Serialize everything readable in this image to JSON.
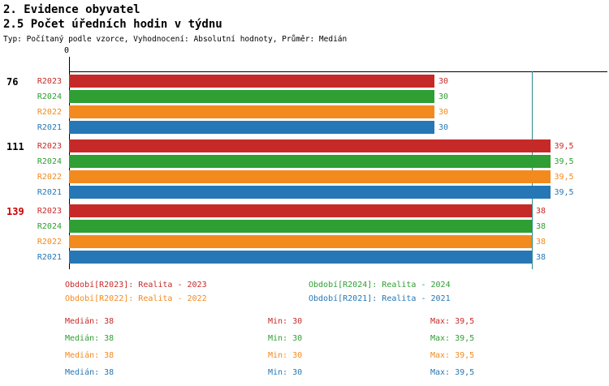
{
  "header": {
    "title": "2. Evidence obyvatel",
    "subtitle": "2.5 Počet úředních hodin v týdnu",
    "meta": "Typ: Počítaný podle vzorce, Vyhodnocení: Absolutní hodnoty, Průměr: Medián"
  },
  "colors": {
    "R2023": "#c62a28",
    "R2024": "#2f9e33",
    "R2022": "#f28a1e",
    "R2021": "#2677b5",
    "group_label_default": "#000000",
    "group_label_highlight": "#cc0000",
    "median_line": "#2e8b8b",
    "axis": "#000000"
  },
  "chart_data": {
    "type": "bar",
    "orientation": "horizontal",
    "title": "2.5 Počet úředních hodin v týdnu",
    "xlabel": "",
    "ylabel": "",
    "xlim": [
      0,
      44
    ],
    "grid": false,
    "legend_position": "bottom",
    "x_axis": {
      "zero_label": "0",
      "median_value": 38
    },
    "series_order": [
      "R2023",
      "R2024",
      "R2022",
      "R2021"
    ],
    "groups": [
      {
        "label": "76",
        "highlight": false,
        "bars": [
          {
            "series": "R2023",
            "value": 30,
            "display": "30"
          },
          {
            "series": "R2024",
            "value": 30,
            "display": "30"
          },
          {
            "series": "R2022",
            "value": 30,
            "display": "30"
          },
          {
            "series": "R2021",
            "value": 30,
            "display": "30"
          }
        ]
      },
      {
        "label": "111",
        "highlight": false,
        "bars": [
          {
            "series": "R2023",
            "value": 39.5,
            "display": "39,5"
          },
          {
            "series": "R2024",
            "value": 39.5,
            "display": "39,5"
          },
          {
            "series": "R2022",
            "value": 39.5,
            "display": "39,5"
          },
          {
            "series": "R2021",
            "value": 39.5,
            "display": "39,5"
          }
        ]
      },
      {
        "label": "139",
        "highlight": true,
        "bars": [
          {
            "series": "R2023",
            "value": 38,
            "display": "38"
          },
          {
            "series": "R2024",
            "value": 38,
            "display": "38"
          },
          {
            "series": "R2022",
            "value": 38,
            "display": "38"
          },
          {
            "series": "R2021",
            "value": 38,
            "display": "38"
          }
        ]
      }
    ]
  },
  "legend": [
    {
      "series": "R2023",
      "label": "Období[R2023]: Realita - 2023"
    },
    {
      "series": "R2024",
      "label": "Období[R2024]: Realita - 2024"
    },
    {
      "series": "R2022",
      "label": "Období[R2022]: Realita - 2022"
    },
    {
      "series": "R2021",
      "label": "Období[R2021]: Realita - 2021"
    }
  ],
  "stats": [
    {
      "series": "R2023",
      "median": "Medián: 38",
      "min": "Min: 30",
      "max": "Max: 39,5"
    },
    {
      "series": "R2024",
      "median": "Medián: 38",
      "min": "Min: 30",
      "max": "Max: 39,5"
    },
    {
      "series": "R2022",
      "median": "Medián: 38",
      "min": "Min: 30",
      "max": "Max: 39,5"
    },
    {
      "series": "R2021",
      "median": "Medián: 38",
      "min": "Min: 30",
      "max": "Max: 39,5"
    }
  ]
}
